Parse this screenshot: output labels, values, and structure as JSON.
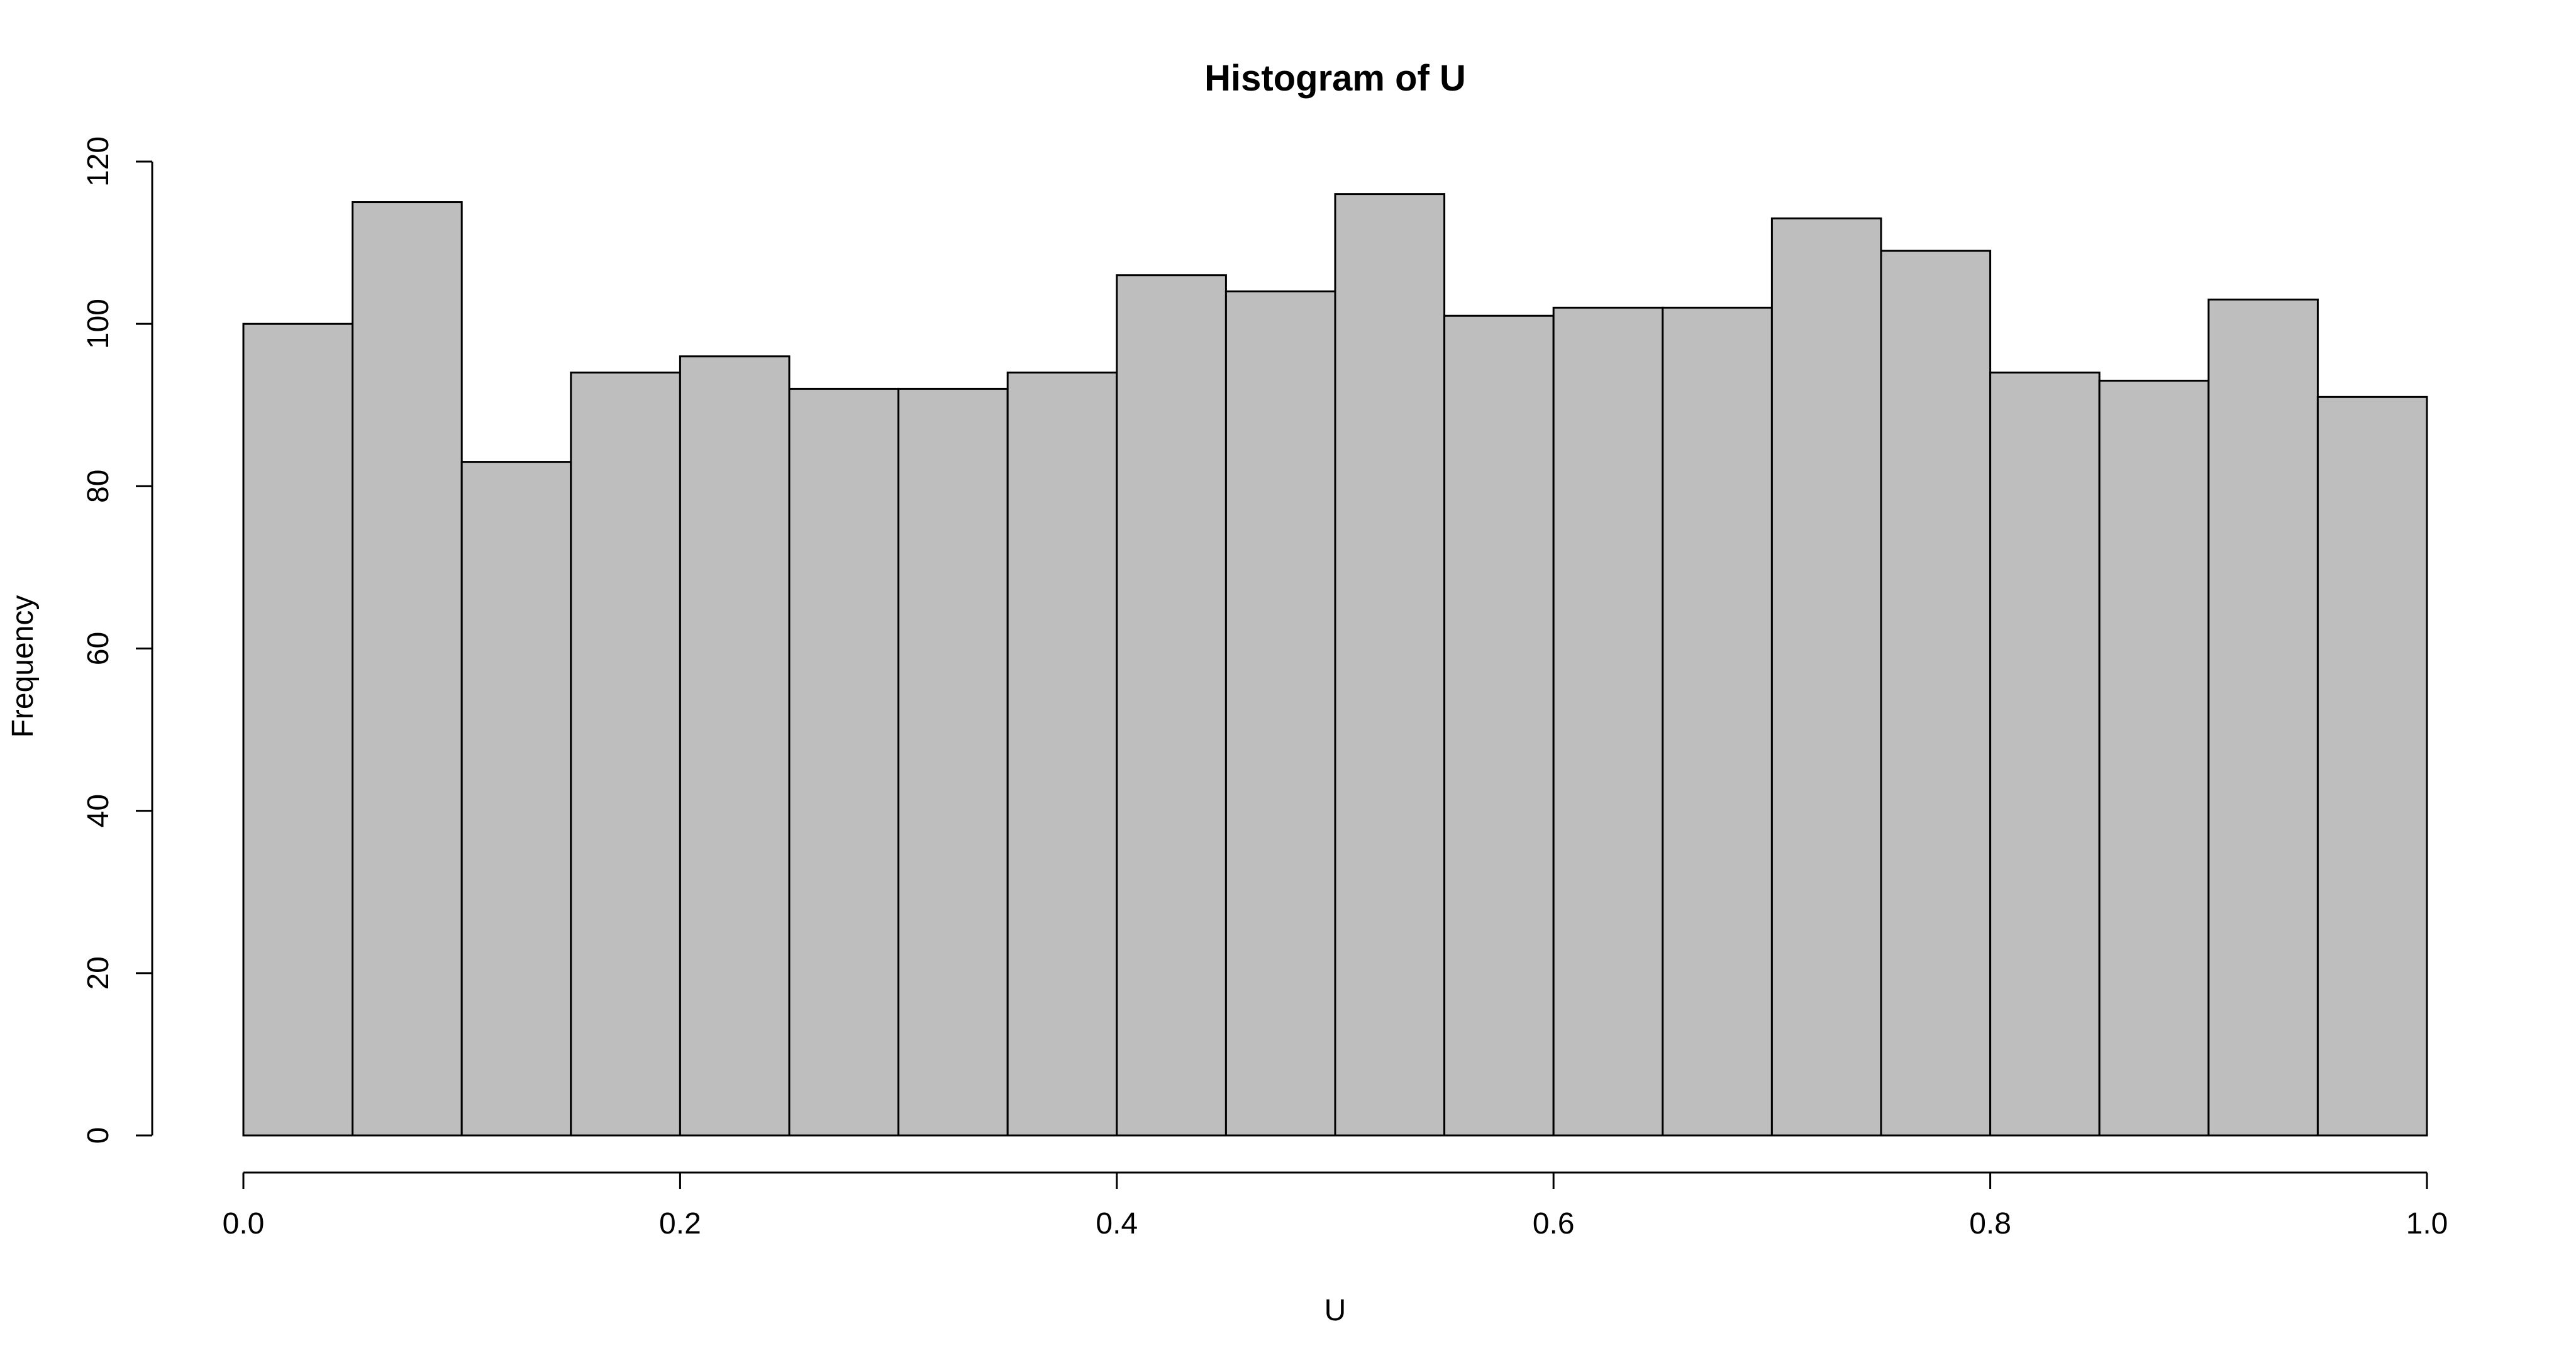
{
  "chart_data": {
    "type": "bar",
    "title": "Histogram of U",
    "xlabel": "U",
    "ylabel": "Frequency",
    "bin_edges": [
      0.0,
      0.05,
      0.1,
      0.15,
      0.2,
      0.25,
      0.3,
      0.35,
      0.4,
      0.45,
      0.5,
      0.55,
      0.6,
      0.65,
      0.7,
      0.75,
      0.8,
      0.85,
      0.9,
      0.95,
      1.0
    ],
    "values": [
      100,
      115,
      83,
      94,
      96,
      92,
      92,
      94,
      106,
      104,
      116,
      101,
      102,
      102,
      113,
      109,
      94,
      93,
      103,
      91
    ],
    "xlim": [
      0.0,
      1.0
    ],
    "ylim": [
      0,
      120
    ],
    "x_ticks": [
      "0.0",
      "0.2",
      "0.4",
      "0.6",
      "0.8",
      "1.0"
    ],
    "y_ticks": [
      "0",
      "20",
      "40",
      "60",
      "80",
      "100",
      "120"
    ],
    "grid": false,
    "colors": {
      "bar_fill": "#bebebe",
      "bar_stroke": "#000000"
    }
  }
}
